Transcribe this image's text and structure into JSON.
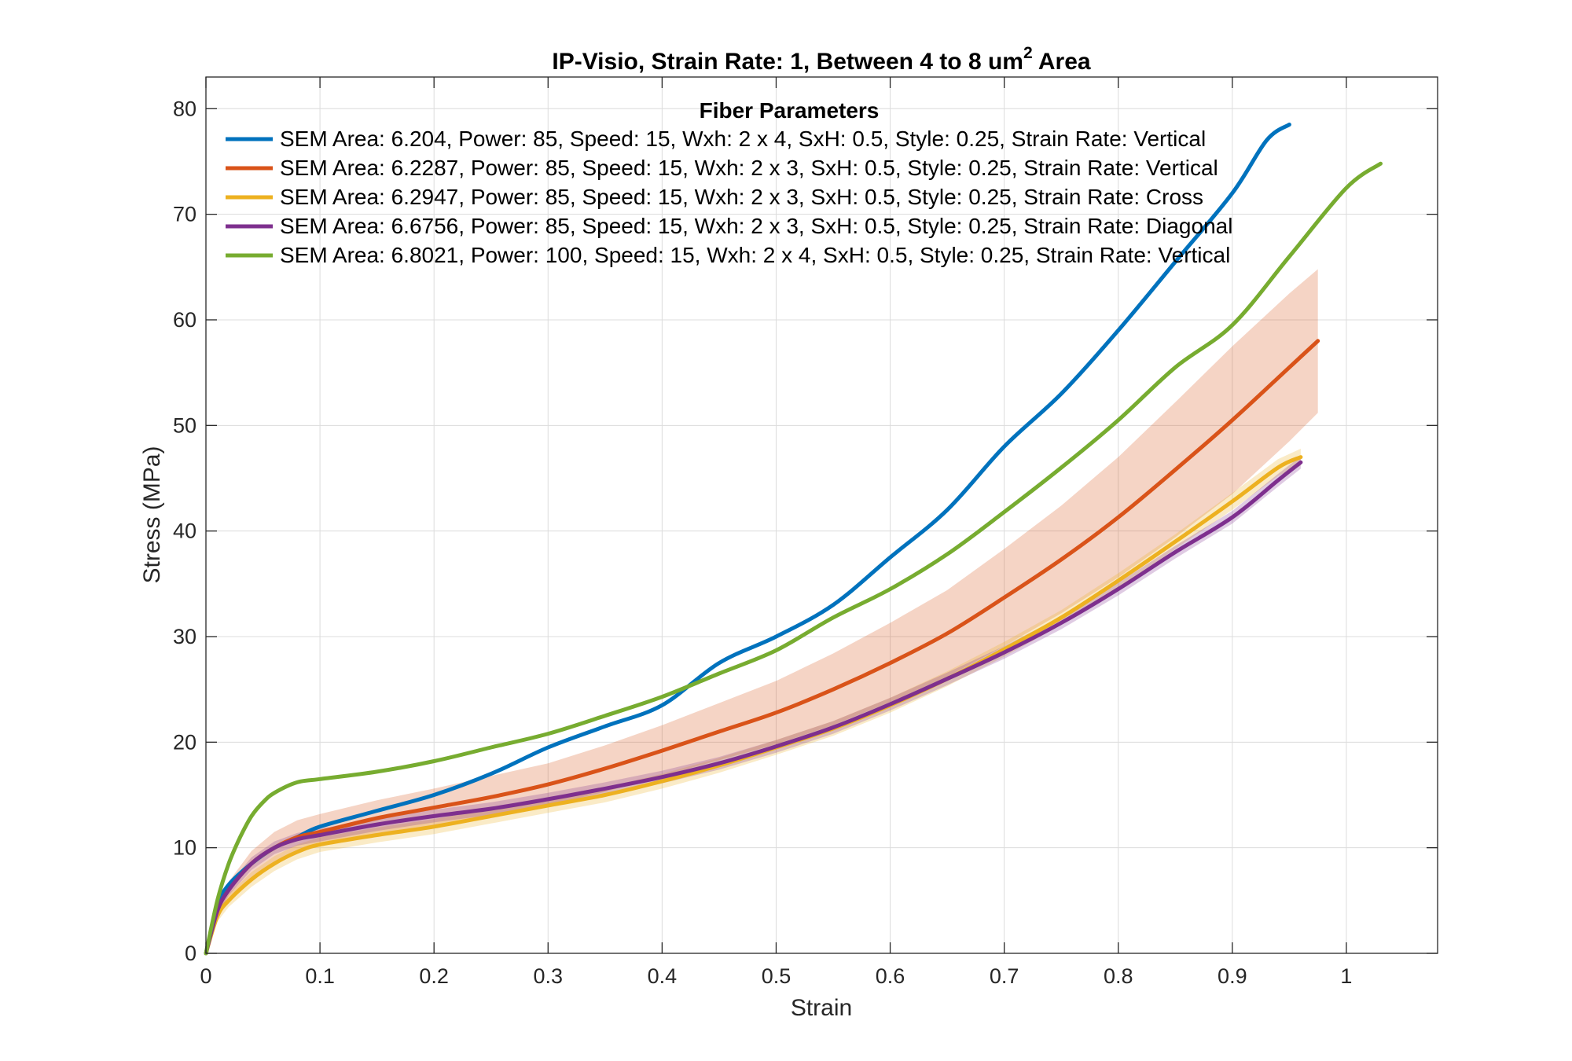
{
  "chart_data": {
    "type": "line",
    "title": "IP-Visio, Strain Rate: 1, Between 4 to 8 um",
    "title_superscript": "2",
    "title_suffix": " Area",
    "xlabel": "Strain",
    "ylabel": "Stress (MPa)",
    "xlim": [
      0,
      1.08
    ],
    "ylim": [
      0,
      83
    ],
    "xticks": [
      0,
      0.1,
      0.2,
      0.3,
      0.4,
      0.5,
      0.6,
      0.7,
      0.8,
      0.9,
      1
    ],
    "xtick_labels": [
      "0",
      "0.1",
      "0.2",
      "0.3",
      "0.4",
      "0.5",
      "0.6",
      "0.7",
      "0.8",
      "0.9",
      "1"
    ],
    "yticks": [
      0,
      10,
      20,
      30,
      40,
      50,
      60,
      70,
      80
    ],
    "ytick_labels": [
      "0",
      "10",
      "20",
      "30",
      "40",
      "50",
      "60",
      "70",
      "80"
    ],
    "grid": true,
    "legend_title": "Fiber Parameters",
    "legend_position": "top",
    "series": [
      {
        "name": "SEM Area: 6.204, Power: 85, Speed: 15, Wxh: 2 x 4, SxH: 0.5, Style: 0.25, Strain Rate: Vertical",
        "color": "#0072BD",
        "x": [
          0,
          0.01,
          0.02,
          0.04,
          0.06,
          0.08,
          0.1,
          0.15,
          0.2,
          0.25,
          0.3,
          0.35,
          0.4,
          0.45,
          0.5,
          0.55,
          0.6,
          0.65,
          0.7,
          0.75,
          0.8,
          0.85,
          0.9,
          0.93,
          0.95
        ],
        "y": [
          0,
          4.5,
          6.5,
          8.5,
          10,
          11,
          12,
          13.5,
          15,
          17,
          19.5,
          21.5,
          23.5,
          27.5,
          30,
          33,
          37.5,
          42,
          48,
          53,
          59,
          65.5,
          72,
          77,
          78.5
        ]
      },
      {
        "name": "SEM Area: 6.2287, Power: 85, Speed: 15, Wxh: 2 x 3, SxH: 0.5, Style: 0.25, Strain Rate: Vertical",
        "color": "#D95319",
        "band": true,
        "x": [
          0,
          0.01,
          0.02,
          0.04,
          0.06,
          0.08,
          0.1,
          0.15,
          0.2,
          0.25,
          0.3,
          0.35,
          0.4,
          0.45,
          0.5,
          0.55,
          0.6,
          0.65,
          0.7,
          0.75,
          0.8,
          0.85,
          0.9,
          0.95,
          0.975
        ],
        "y": [
          0,
          4,
          6,
          8.5,
          10,
          11,
          11.5,
          12.8,
          13.8,
          14.8,
          16,
          17.5,
          19.2,
          21,
          22.8,
          25,
          27.5,
          30.3,
          33.7,
          37.3,
          41.3,
          45.8,
          50.5,
          55.5,
          58
        ],
        "band_lower": [
          0,
          3.5,
          5.2,
          7.2,
          8.6,
          9.6,
          10.3,
          11.2,
          12,
          12.9,
          14,
          15.3,
          16.8,
          18.3,
          19.8,
          21.6,
          23.8,
          26.2,
          29.1,
          32.2,
          35.6,
          39.4,
          43.5,
          48.5,
          51.2
        ],
        "band_upper": [
          0,
          4.5,
          6.8,
          9.7,
          11.5,
          12.6,
          13.2,
          14.5,
          15.6,
          16.8,
          18,
          19.7,
          21.6,
          23.7,
          25.8,
          28.4,
          31.3,
          34.4,
          38.3,
          42.4,
          47,
          52.2,
          57.5,
          62.5,
          64.8
        ]
      },
      {
        "name": "SEM Area: 6.2947, Power: 85, Speed: 15, Wxh: 2 x 3, SxH: 0.5, Style: 0.25, Strain Rate: Cross",
        "color": "#EDB120",
        "band": true,
        "x": [
          0,
          0.01,
          0.02,
          0.04,
          0.06,
          0.08,
          0.1,
          0.15,
          0.2,
          0.25,
          0.3,
          0.35,
          0.4,
          0.45,
          0.5,
          0.55,
          0.6,
          0.65,
          0.7,
          0.75,
          0.8,
          0.85,
          0.9,
          0.94,
          0.96
        ],
        "y": [
          0,
          3.5,
          5,
          7,
          8.5,
          9.6,
          10.3,
          11.2,
          12,
          13,
          14,
          15,
          16.3,
          17.8,
          19.5,
          21.3,
          23.5,
          26,
          28.8,
          31.8,
          35.3,
          39,
          42.8,
          46,
          47
        ],
        "band_lower": [
          0,
          3,
          4.4,
          6.3,
          7.8,
          8.9,
          9.6,
          10.5,
          11.3,
          12.3,
          13.3,
          14.3,
          15.6,
          17.1,
          18.8,
          20.6,
          22.8,
          25.3,
          28.1,
          31.1,
          34.6,
          38.3,
          42,
          45.2,
          46.2
        ],
        "band_upper": [
          0,
          4,
          5.6,
          7.7,
          9.2,
          10.3,
          11,
          11.9,
          12.7,
          13.7,
          14.7,
          15.7,
          17,
          18.5,
          20.2,
          22,
          24.2,
          26.7,
          29.5,
          32.5,
          36,
          39.7,
          43.6,
          46.8,
          47.8
        ]
      },
      {
        "name": "SEM Area: 6.6756, Power: 85, Speed: 15, Wxh: 2 x 3, SxH: 0.5, Style: 0.25, Strain Rate: Diagonal",
        "color": "#7E2F8E",
        "band": true,
        "x": [
          0,
          0.01,
          0.02,
          0.04,
          0.06,
          0.08,
          0.1,
          0.15,
          0.2,
          0.25,
          0.3,
          0.35,
          0.4,
          0.45,
          0.5,
          0.55,
          0.6,
          0.65,
          0.7,
          0.75,
          0.8,
          0.85,
          0.9,
          0.94,
          0.96
        ],
        "y": [
          0,
          4,
          6,
          8.5,
          10,
          10.8,
          11.2,
          12.2,
          13,
          13.7,
          14.6,
          15.6,
          16.7,
          18,
          19.6,
          21.4,
          23.6,
          26,
          28.5,
          31.3,
          34.5,
          38,
          41.3,
          44.8,
          46.5
        ],
        "band_lower": [
          0,
          3.6,
          5.5,
          7.9,
          9.4,
          10.2,
          10.6,
          11.6,
          12.4,
          13.1,
          14,
          15,
          16.1,
          17.4,
          19,
          20.8,
          23,
          25.4,
          27.9,
          30.7,
          33.9,
          37.4,
          40.7,
          44.2,
          45.9
        ],
        "band_upper": [
          0,
          4.4,
          6.5,
          9.1,
          10.6,
          11.4,
          11.8,
          12.8,
          13.6,
          14.3,
          15.2,
          16.2,
          17.3,
          18.6,
          20.2,
          22,
          24.2,
          26.6,
          29.1,
          31.9,
          35.1,
          38.6,
          41.9,
          45.4,
          47.1
        ]
      },
      {
        "name": "SEM Area: 6.8021, Power: 100, Speed: 15, Wxh: 2 x 4, SxH: 0.5, Style: 0.25, Strain Rate: Vertical",
        "color": "#77AC30",
        "x": [
          0,
          0.01,
          0.02,
          0.03,
          0.04,
          0.05,
          0.06,
          0.08,
          0.1,
          0.15,
          0.2,
          0.25,
          0.3,
          0.35,
          0.4,
          0.45,
          0.5,
          0.55,
          0.6,
          0.65,
          0.7,
          0.75,
          0.8,
          0.85,
          0.9,
          0.95,
          1.0,
          1.03
        ],
        "y": [
          0,
          5,
          8.5,
          11,
          13,
          14.3,
          15.2,
          16.2,
          16.5,
          17.2,
          18.2,
          19.5,
          20.8,
          22.5,
          24.3,
          26.5,
          28.7,
          31.8,
          34.5,
          37.8,
          41.8,
          46,
          50.5,
          55.5,
          59.5,
          66,
          72.5,
          74.8
        ]
      }
    ]
  }
}
